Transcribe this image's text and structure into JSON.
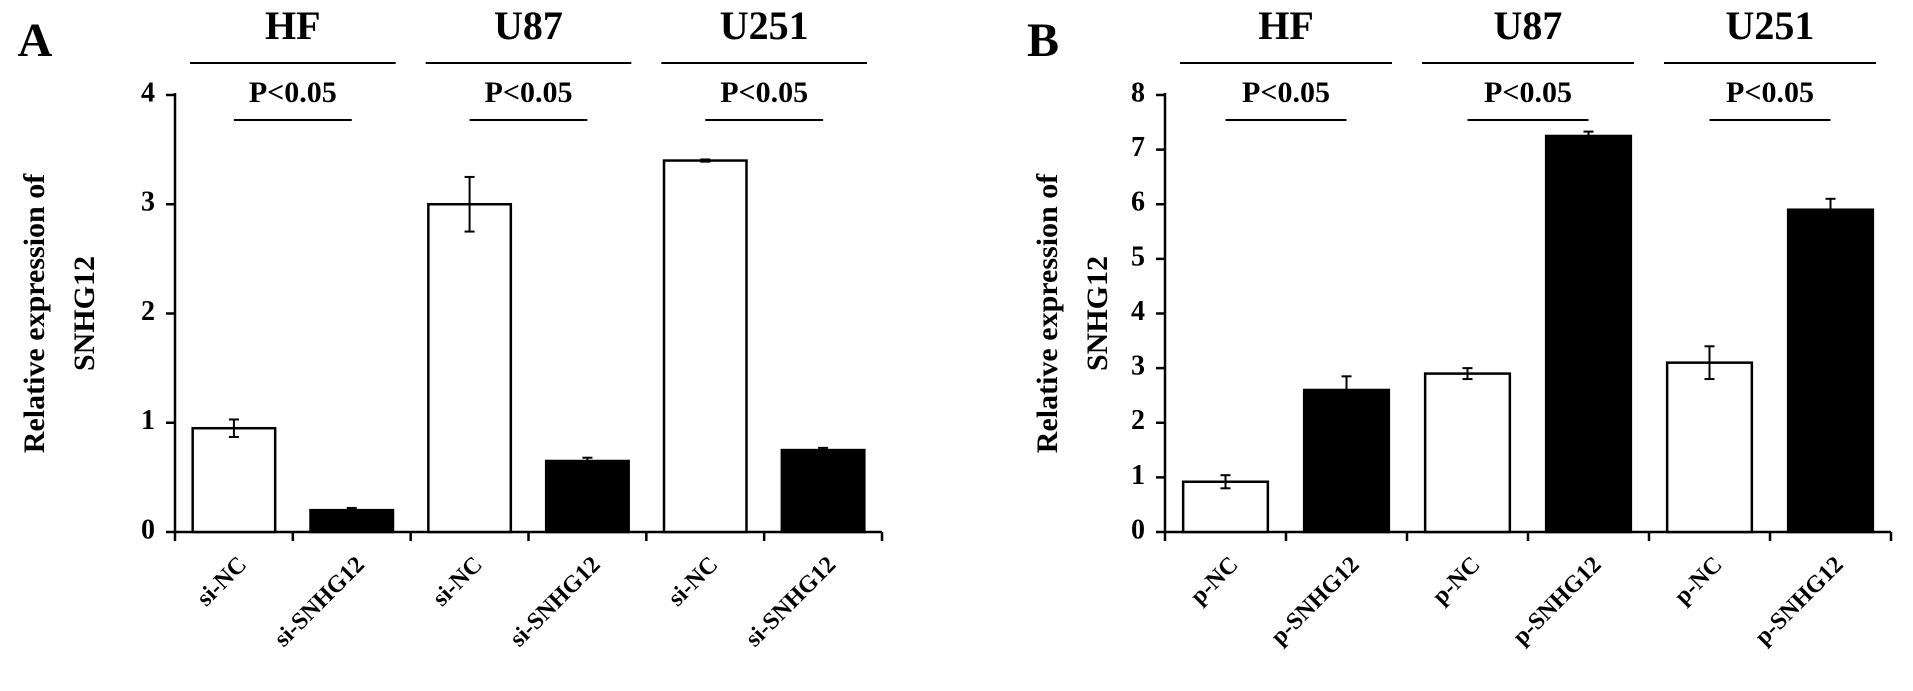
{
  "chart_data": [
    {
      "type": "bar",
      "panel": "A",
      "y_label": [
        "Relative expression of",
        "SNHG12"
      ],
      "groups": [
        {
          "name": "HF",
          "annotation": "P<0.05"
        },
        {
          "name": "U87",
          "annotation": "P<0.05"
        },
        {
          "name": "U251",
          "annotation": "P<0.05"
        }
      ],
      "categories": [
        "si-NC",
        "si-SNHG12",
        "si-NC",
        "si-SNHG12",
        "si-NC",
        "si-SNHG12"
      ],
      "values": [
        0.95,
        0.2,
        3.0,
        0.65,
        3.4,
        0.75
      ],
      "errors": [
        0.08,
        0.02,
        0.25,
        0.03,
        0.01,
        0.02
      ],
      "colors": [
        "#ffffff",
        "#000000",
        "#ffffff",
        "#000000",
        "#ffffff",
        "#000000"
      ],
      "ylim": [
        0,
        4
      ],
      "yticks": [
        0,
        1,
        2,
        3,
        4
      ]
    },
    {
      "type": "bar",
      "panel": "B",
      "y_label": [
        "Relative expression of",
        "SNHG12"
      ],
      "groups": [
        {
          "name": "HF",
          "annotation": "P<0.05"
        },
        {
          "name": "U87",
          "annotation": "P<0.05"
        },
        {
          "name": "U251",
          "annotation": "P<0.05"
        }
      ],
      "categories": [
        "p-NC",
        "p-SNHG12",
        "p-NC",
        "p-SNHG12",
        "p-NC",
        "p-SNHG12"
      ],
      "values": [
        0.92,
        2.6,
        2.9,
        7.25,
        3.1,
        5.9
      ],
      "errors": [
        0.12,
        0.25,
        0.1,
        0.08,
        0.3,
        0.2
      ],
      "colors": [
        "#ffffff",
        "#000000",
        "#ffffff",
        "#000000",
        "#ffffff",
        "#000000"
      ],
      "ylim": [
        0,
        8
      ],
      "yticks": [
        0,
        1,
        2,
        3,
        4,
        5,
        6,
        7,
        8
      ]
    }
  ]
}
